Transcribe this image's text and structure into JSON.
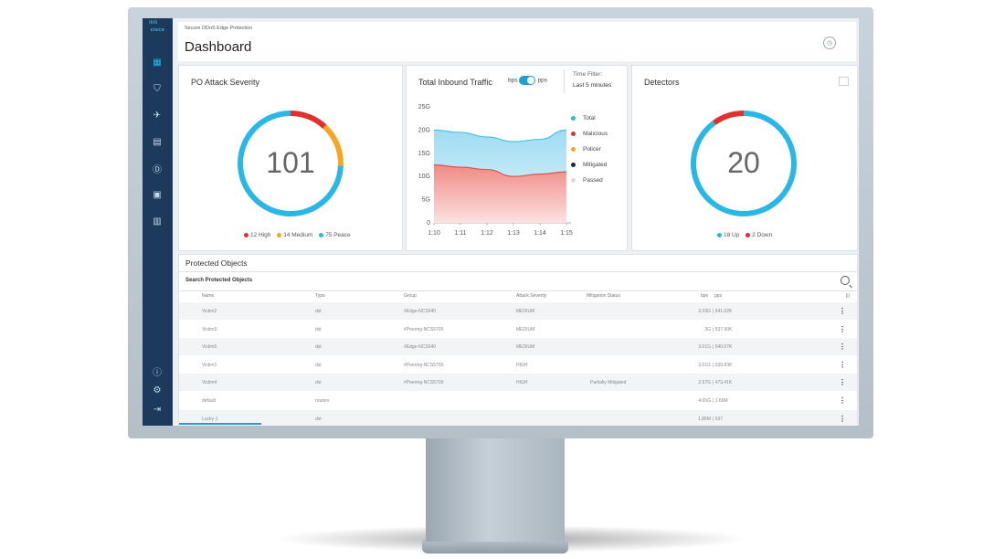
{
  "app": {
    "brand": "cisco",
    "breadcrumb": "Secure DDoS Edge Protection",
    "page_title": "Dashboard"
  },
  "severity": {
    "title": "PO Attack Severity",
    "total": "101",
    "legend": [
      {
        "label": "12 High",
        "value": 12,
        "color": "#e0302f"
      },
      {
        "label": "14 Medium",
        "value": 14,
        "color": "#f5a623"
      },
      {
        "label": "75 Peace",
        "value": 75,
        "color": "#2ab7e6"
      }
    ]
  },
  "traffic": {
    "title": "Total Inbound Traffic",
    "toggle_left": "bps",
    "toggle_right": "pps",
    "time_filter_label": "Time Filter:",
    "time_filter_value": "Last 5 minutes",
    "y_ticks": [
      "25G",
      "20G",
      "15G",
      "10G",
      "5G",
      "0"
    ],
    "x_ticks": [
      "1:10",
      "1:11",
      "1:12",
      "1:13",
      "1:14",
      "1:15"
    ],
    "legend": [
      {
        "label": "Total",
        "color": "#2ab7e6"
      },
      {
        "label": "Malicious",
        "color": "#e0302f"
      },
      {
        "label": "Policer",
        "color": "#f5a623"
      },
      {
        "label": "Mitigated",
        "color": "#1b2a4a"
      },
      {
        "label": "Passed",
        "color": "#d8dde2"
      }
    ]
  },
  "chart_data": {
    "type": "area",
    "x": [
      "1:10",
      "1:11",
      "1:12",
      "1:13",
      "1:14",
      "1:15"
    ],
    "ylim": [
      0,
      25
    ],
    "yunit": "G",
    "series": [
      {
        "name": "Total",
        "values": [
          20,
          19.5,
          18.5,
          17.5,
          18,
          20
        ]
      },
      {
        "name": "Malicious",
        "values": [
          12.5,
          12,
          11.5,
          10,
          10.5,
          11
        ]
      }
    ]
  },
  "detectors": {
    "title": "Detectors",
    "total": "20",
    "legend": [
      {
        "label": "18 Up",
        "value": 18,
        "color": "#2ab7e6"
      },
      {
        "label": "2 Down",
        "value": 2,
        "color": "#e0302f"
      }
    ]
  },
  "protected": {
    "title": "Protected Objects",
    "search_placeholder": "Search Protected Objects",
    "columns": [
      "Name",
      "Type",
      "Group",
      "Attack Severity",
      "Mitigation Status",
      "bps",
      "pps"
    ],
    "rows": [
      {
        "name": "Victim2",
        "type": "dst",
        "group": "#Edge-NCS540",
        "severity": "MEDIUM",
        "mitigation": "",
        "bps": "3.03G",
        "pps": "541.02K"
      },
      {
        "name": "Victim3",
        "type": "dst",
        "group": "#Peering-NCS5700",
        "severity": "MEDIUM",
        "mitigation": "",
        "bps": "3G",
        "pps": "537.90K"
      },
      {
        "name": "Victim5",
        "type": "dst",
        "group": "#Edge-NCS540",
        "severity": "MEDIUM",
        "mitigation": "",
        "bps": "3.01G",
        "pps": "540.07K"
      },
      {
        "name": "Victim1",
        "type": "dst",
        "group": "#Peering-NCS5700",
        "severity": "HIGH",
        "mitigation": "",
        "bps": "3.01G",
        "pps": "539.83K"
      },
      {
        "name": "Victim4",
        "type": "dst",
        "group": "#Peering-NCS5700",
        "severity": "HIGH",
        "mitigation": "Partially Mitigated",
        "bps": "2.57G",
        "pps": "473.41K"
      },
      {
        "name": "default",
        "type": "routers",
        "group": "",
        "severity": "",
        "mitigation": "",
        "bps": "4.65G",
        "pps": "1.66M"
      },
      {
        "name": "Lucky-1",
        "type": "dst",
        "group": "",
        "severity": "",
        "mitigation": "",
        "bps": "1.86M",
        "pps": "637"
      }
    ]
  }
}
